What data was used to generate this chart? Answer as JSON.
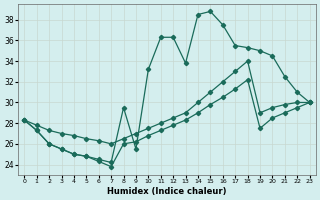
{
  "xlabel": "Humidex (Indice chaleur)",
  "bg_color": "#d4eeee",
  "grid_color": "#b8d8d8",
  "line_color": "#1a6b5a",
  "xlim": [
    -0.5,
    23.5
  ],
  "ylim": [
    23.0,
    39.5
  ],
  "yticks": [
    24,
    26,
    28,
    30,
    32,
    34,
    36,
    38
  ],
  "xticks": [
    0,
    1,
    2,
    3,
    4,
    5,
    6,
    7,
    8,
    9,
    10,
    11,
    12,
    13,
    14,
    15,
    16,
    17,
    18,
    19,
    20,
    21,
    22,
    23
  ],
  "curve_top_x": [
    0,
    1,
    2,
    3,
    4,
    5,
    6,
    7,
    8,
    9,
    10,
    11,
    12,
    13,
    14,
    15,
    16,
    17,
    18,
    19,
    20,
    21,
    22,
    23
  ],
  "curve_top_y": [
    28.3,
    27.3,
    26.0,
    25.5,
    25.0,
    24.8,
    24.5,
    24.2,
    29.5,
    25.5,
    33.2,
    36.3,
    36.3,
    33.8,
    38.5,
    38.8,
    37.5,
    35.5,
    35.3,
    35.0,
    34.5,
    32.5,
    31.0,
    30.0
  ],
  "curve_mid_x": [
    0,
    1,
    2,
    3,
    4,
    5,
    6,
    7,
    8,
    9,
    10,
    11,
    12,
    13,
    14,
    15,
    16,
    17,
    18,
    19,
    20,
    21,
    22,
    23
  ],
  "curve_mid_y": [
    28.3,
    27.8,
    27.3,
    27.0,
    26.8,
    26.5,
    26.3,
    26.0,
    26.5,
    27.0,
    27.5,
    28.0,
    28.5,
    29.0,
    30.0,
    31.0,
    32.0,
    33.0,
    34.0,
    29.0,
    29.5,
    29.8,
    30.0,
    30.0
  ],
  "curve_bot_x": [
    0,
    1,
    2,
    3,
    4,
    5,
    6,
    7,
    8,
    9,
    10,
    11,
    12,
    13,
    14,
    15,
    16,
    17,
    18,
    19,
    20,
    21,
    22,
    23
  ],
  "curve_bot_y": [
    28.3,
    27.3,
    26.0,
    25.5,
    25.0,
    24.8,
    24.3,
    23.8,
    26.0,
    26.2,
    26.8,
    27.3,
    27.8,
    28.3,
    29.0,
    29.8,
    30.5,
    31.3,
    32.2,
    27.5,
    28.5,
    29.0,
    29.5,
    30.0
  ]
}
